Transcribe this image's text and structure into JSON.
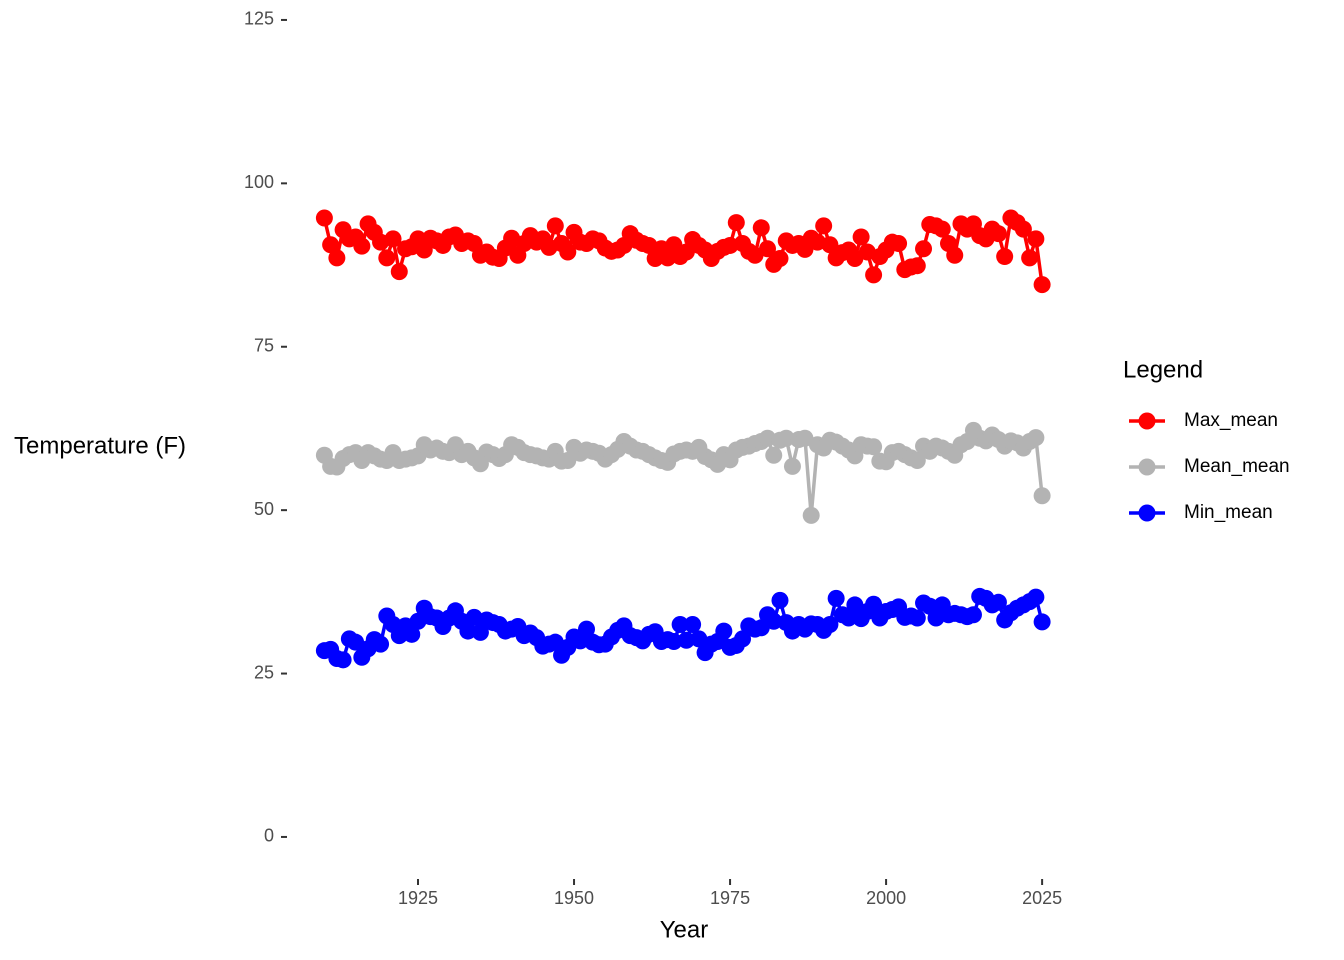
{
  "chart_data": {
    "type": "line",
    "x_label": "Year",
    "y_label": "Temperature (F)",
    "legend_title": "Legend",
    "legend": "right",
    "x": [
      1910,
      1911,
      1912,
      1913,
      1914,
      1915,
      1916,
      1917,
      1918,
      1919,
      1920,
      1921,
      1922,
      1923,
      1924,
      1925,
      1926,
      1927,
      1928,
      1929,
      1930,
      1931,
      1932,
      1933,
      1934,
      1935,
      1936,
      1937,
      1938,
      1939,
      1940,
      1941,
      1942,
      1943,
      1944,
      1945,
      1946,
      1947,
      1948,
      1949,
      1950,
      1951,
      1952,
      1953,
      1954,
      1955,
      1956,
      1957,
      1958,
      1959,
      1960,
      1961,
      1962,
      1963,
      1964,
      1965,
      1966,
      1967,
      1968,
      1969,
      1970,
      1971,
      1972,
      1973,
      1974,
      1975,
      1976,
      1977,
      1978,
      1979,
      1980,
      1981,
      1982,
      1983,
      1984,
      1985,
      1986,
      1987,
      1988,
      1989,
      1990,
      1991,
      1992,
      1993,
      1994,
      1995,
      1996,
      1997,
      1998,
      1999,
      2000,
      2001,
      2002,
      2003,
      2004,
      2005,
      2006,
      2007,
      2008,
      2009,
      2010,
      2011,
      2012,
      2013,
      2014,
      2015,
      2016,
      2017,
      2018,
      2019,
      2020,
      2021,
      2022,
      2023,
      2024,
      2025
    ],
    "series": [
      {
        "name": "Max_mean",
        "color": "#ff0000",
        "values": [
          94.7,
          90.6,
          88.6,
          92.9,
          91.5,
          91.8,
          90.4,
          93.8,
          92.5,
          91.0,
          88.6,
          91.5,
          86.5,
          90.0,
          90.3,
          91.5,
          89.8,
          91.6,
          91.2,
          90.5,
          91.8,
          92.1,
          90.8,
          91.2,
          90.8,
          89.0,
          89.5,
          88.7,
          88.5,
          90.1,
          91.6,
          89.0,
          90.8,
          92.0,
          91.0,
          91.5,
          90.2,
          93.5,
          90.8,
          89.5,
          92.5,
          91.0,
          90.8,
          91.5,
          91.2,
          90.1,
          89.6,
          89.8,
          90.5,
          92.3,
          91.3,
          90.8,
          90.5,
          88.5,
          90.0,
          88.6,
          90.6,
          88.8,
          89.5,
          91.4,
          90.5,
          89.8,
          88.5,
          89.6,
          90.2,
          90.5,
          94.0,
          90.8,
          89.6,
          89.0,
          93.2,
          90.0,
          87.6,
          88.5,
          91.2,
          90.5,
          90.8,
          89.9,
          91.6,
          91.0,
          93.5,
          90.6,
          88.6,
          89.4,
          89.8,
          88.5,
          91.8,
          89.5,
          86.0,
          88.8,
          89.8,
          91.0,
          90.8,
          86.8,
          87.2,
          87.4,
          90.0,
          93.7,
          93.5,
          93.0,
          90.8,
          89.0,
          93.8,
          93.0,
          93.8,
          92.0,
          91.5,
          93.0,
          92.3,
          88.8,
          94.7,
          94.0,
          93.0,
          88.6,
          91.5,
          84.5
        ]
      },
      {
        "name": "Mean_mean",
        "color": "#b3b3b3",
        "values": [
          58.4,
          56.7,
          56.6,
          57.9,
          58.5,
          58.8,
          57.6,
          58.8,
          58.3,
          57.8,
          57.6,
          58.8,
          57.6,
          57.8,
          58.0,
          58.3,
          60.0,
          59.2,
          59.5,
          59.0,
          58.8,
          60.0,
          58.5,
          59.0,
          58.0,
          57.1,
          58.9,
          58.5,
          57.9,
          58.5,
          60.0,
          59.6,
          58.8,
          58.5,
          58.3,
          58.0,
          57.8,
          59.0,
          57.5,
          57.6,
          59.6,
          58.7,
          59.2,
          59.0,
          58.7,
          57.8,
          58.5,
          59.3,
          60.5,
          59.8,
          59.2,
          59.0,
          58.5,
          58.0,
          57.6,
          57.3,
          58.6,
          59.0,
          59.2,
          59.0,
          59.6,
          58.2,
          57.7,
          57.0,
          58.5,
          57.7,
          59.2,
          59.6,
          59.8,
          60.2,
          60.5,
          61.0,
          58.4,
          60.7,
          61.0,
          56.7,
          60.8,
          61.0,
          49.2,
          60.0,
          59.5,
          60.7,
          60.4,
          59.8,
          59.2,
          58.3,
          60.0,
          59.8,
          59.7,
          57.5,
          57.4,
          58.8,
          59.0,
          58.5,
          58.0,
          57.6,
          59.8,
          59.0,
          59.8,
          59.5,
          59.0,
          58.4,
          60.0,
          60.5,
          62.2,
          61.0,
          60.6,
          61.5,
          60.8,
          59.8,
          60.6,
          60.3,
          59.5,
          60.5,
          61.1,
          52.2
        ]
      },
      {
        "name": "Min_mean",
        "color": "#0000ff",
        "values": [
          28.5,
          28.7,
          27.3,
          27.1,
          30.3,
          29.8,
          27.5,
          28.8,
          30.2,
          29.5,
          33.8,
          32.5,
          30.8,
          32.3,
          31.0,
          33.0,
          35.0,
          33.7,
          33.5,
          32.2,
          33.5,
          34.6,
          33.0,
          31.5,
          33.6,
          31.3,
          33.2,
          32.8,
          32.5,
          31.5,
          31.8,
          32.2,
          30.8,
          31.2,
          30.5,
          29.2,
          29.5,
          29.8,
          27.8,
          29.0,
          30.6,
          30.0,
          31.8,
          29.8,
          29.4,
          29.5,
          30.6,
          31.6,
          32.3,
          30.8,
          30.5,
          30.0,
          31.0,
          31.4,
          29.9,
          30.2,
          29.9,
          32.5,
          30.1,
          32.5,
          30.3,
          28.2,
          29.5,
          29.9,
          31.5,
          29.0,
          29.3,
          30.3,
          32.3,
          31.8,
          32.0,
          34.0,
          33.0,
          36.2,
          32.8,
          31.5,
          32.5,
          31.8,
          32.6,
          32.5,
          31.6,
          32.5,
          36.5,
          34.0,
          33.5,
          35.5,
          33.4,
          34.5,
          35.6,
          33.5,
          34.5,
          34.8,
          35.2,
          33.6,
          33.8,
          33.5,
          35.8,
          35.3,
          33.5,
          35.5,
          34.0,
          34.2,
          34.0,
          33.7,
          34.0,
          36.8,
          36.5,
          35.5,
          35.9,
          33.2,
          34.3,
          35.0,
          35.5,
          36.0,
          36.7,
          32.9
        ]
      }
    ],
    "xlim": [
      1904.25,
      2030.75
    ],
    "xticks": [
      1925,
      1950,
      1975,
      2000,
      2025
    ],
    "ylim": [
      -6.25,
      131.25
    ],
    "yticks": [
      0,
      25,
      50,
      75,
      100,
      125
    ]
  }
}
